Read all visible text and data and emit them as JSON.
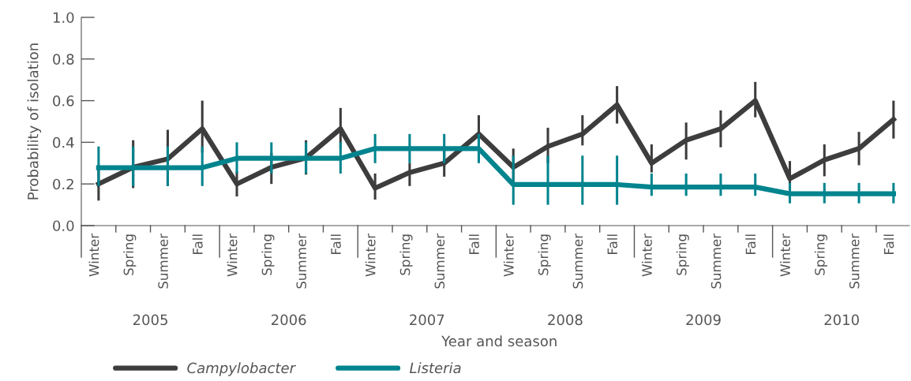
{
  "chart_data": {
    "type": "line",
    "xlabel": "Year and season",
    "ylabel": "Probability of isolation",
    "categories": [
      "Winter",
      "Spring",
      "Summer",
      "Fall",
      "Winter",
      "Spring",
      "Summer",
      "Fall",
      "Winter",
      "Spring",
      "Summer",
      "Fall",
      "Winter",
      "Spring",
      "Summer",
      "Fall",
      "Winter",
      "Spring",
      "Summer",
      "Fall",
      "Winter",
      "Spring",
      "Summer",
      "Fall"
    ],
    "annotations": [
      "2005",
      "2006",
      "2007",
      "2008",
      "2009",
      "2010"
    ],
    "ylim": [
      0,
      1
    ],
    "yticks": [
      {
        "value": 0,
        "label": "0.0"
      },
      {
        "value": 0.2,
        "label": "0.2"
      },
      {
        "value": 0.4,
        "label": "0.4"
      },
      {
        "value": 0.6,
        "label": "0.6"
      },
      {
        "value": 0.8,
        "label": "0.8"
      },
      {
        "value": 1,
        "label": "1.0"
      }
    ],
    "grid": false,
    "legend": "bottom",
    "marker": "none",
    "line_style": "solid",
    "series": [
      {
        "name": "Campylobacter",
        "color": "#3d3d3d",
        "values": [
          0.2,
          0.28,
          0.32,
          0.465,
          0.2,
          0.28,
          0.325,
          0.465,
          0.18,
          0.255,
          0.3,
          0.44,
          0.28,
          0.38,
          0.44,
          0.58,
          0.3,
          0.41,
          0.465,
          0.6,
          0.225,
          0.315,
          0.37,
          0.51
        ],
        "errors": [
          [
            0.12,
            0.28
          ],
          [
            0.18,
            0.41
          ],
          [
            0.19,
            0.46
          ],
          [
            0.35,
            0.6
          ],
          [
            0.14,
            0.26
          ],
          [
            0.2,
            0.35
          ],
          [
            0.245,
            0.41
          ],
          [
            0.37,
            0.565
          ],
          [
            0.125,
            0.25
          ],
          [
            0.19,
            0.3
          ],
          [
            0.235,
            0.37
          ],
          [
            0.37,
            0.53
          ],
          [
            0.2,
            0.37
          ],
          [
            0.3,
            0.47
          ],
          [
            0.385,
            0.53
          ],
          [
            0.49,
            0.67
          ],
          [
            0.255,
            0.39
          ],
          [
            0.317,
            0.495
          ],
          [
            0.376,
            0.553
          ],
          [
            0.52,
            0.69
          ],
          [
            0.16,
            0.31
          ],
          [
            0.237,
            0.39
          ],
          [
            0.29,
            0.45
          ],
          [
            0.418,
            0.6
          ]
        ]
      },
      {
        "name": "Listeria",
        "color": "#00848e",
        "values": [
          0.278,
          0.278,
          0.278,
          0.278,
          0.323,
          0.323,
          0.323,
          0.323,
          0.37,
          0.37,
          0.37,
          0.37,
          0.197,
          0.197,
          0.197,
          0.197,
          0.185,
          0.185,
          0.185,
          0.185,
          0.153,
          0.153,
          0.153,
          0.153
        ],
        "errors": [
          [
            0.19,
            0.38
          ],
          [
            0.19,
            0.38
          ],
          [
            0.19,
            0.38
          ],
          [
            0.19,
            0.38
          ],
          [
            0.25,
            0.4
          ],
          [
            0.25,
            0.4
          ],
          [
            0.25,
            0.4
          ],
          [
            0.25,
            0.4
          ],
          [
            0.3,
            0.44
          ],
          [
            0.3,
            0.44
          ],
          [
            0.3,
            0.44
          ],
          [
            0.3,
            0.44
          ],
          [
            0.1,
            0.336
          ],
          [
            0.1,
            0.336
          ],
          [
            0.1,
            0.336
          ],
          [
            0.1,
            0.336
          ],
          [
            0.143,
            0.25
          ],
          [
            0.143,
            0.25
          ],
          [
            0.143,
            0.25
          ],
          [
            0.143,
            0.25
          ],
          [
            0.107,
            0.205
          ],
          [
            0.107,
            0.205
          ],
          [
            0.107,
            0.205
          ],
          [
            0.107,
            0.205
          ]
        ]
      }
    ]
  }
}
